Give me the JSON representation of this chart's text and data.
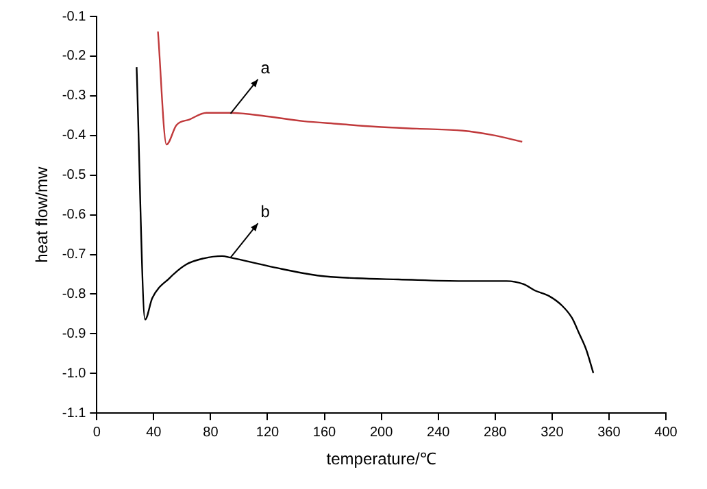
{
  "chart_data": {
    "type": "line",
    "xlabel": "temperature/℃",
    "ylabel": "heat flow/mw",
    "xlim": [
      0,
      400
    ],
    "xticks": [
      0,
      40,
      80,
      120,
      160,
      200,
      240,
      280,
      320,
      360,
      400
    ],
    "ylim": [
      -1.1,
      -0.1
    ],
    "yticks": [
      {
        "value": -1.1,
        "label": "-1.1"
      },
      {
        "value": -1,
        "label": "-1.0"
      },
      {
        "value": -0.9,
        "label": "-0.9"
      },
      {
        "value": -0.8,
        "label": "-0.8"
      },
      {
        "value": -0.7,
        "label": "-0.7"
      },
      {
        "value": -0.6,
        "label": "-0.6"
      },
      {
        "value": -0.5,
        "label": "-0.5"
      },
      {
        "value": -0.4,
        "label": "-0.4"
      },
      {
        "value": -0.3,
        "label": "-0.3"
      },
      {
        "value": -0.2,
        "label": "-0.2"
      },
      {
        "value": -0.1,
        "label": "-0.1"
      }
    ],
    "grid": false,
    "legend": false,
    "marker": "none",
    "line_style": "solid",
    "series": [
      {
        "color": "#c0393b",
        "x": [
          43,
          49,
          56,
          65,
          77,
          94,
          120,
          145,
          170,
          196,
          225,
          257,
          278,
          299
        ],
        "values": [
          -0.138,
          -0.423,
          -0.374,
          -0.36,
          -0.343,
          -0.343,
          -0.352,
          -0.364,
          -0.371,
          -0.378,
          -0.383,
          -0.388,
          -0.399,
          -0.416
        ]
      },
      {
        "color": "#000000",
        "x": [
          28,
          34,
          39,
          51,
          63,
          75,
          88,
          94,
          124,
          155,
          183,
          212,
          257,
          288,
          300,
          308,
          318,
          327,
          334,
          339,
          344,
          349
        ],
        "values": [
          -0.228,
          -0.864,
          -0.81,
          -0.76,
          -0.725,
          -0.71,
          -0.704,
          -0.708,
          -0.732,
          -0.753,
          -0.76,
          -0.763,
          -0.767,
          -0.767,
          -0.775,
          -0.791,
          -0.805,
          -0.829,
          -0.86,
          -0.899,
          -0.94,
          -0.999
        ]
      }
    ],
    "annotations": [
      {
        "text": "a",
        "x": 94,
        "y": -0.345
      },
      {
        "text": "b",
        "x": 94,
        "y": -0.708
      }
    ]
  }
}
